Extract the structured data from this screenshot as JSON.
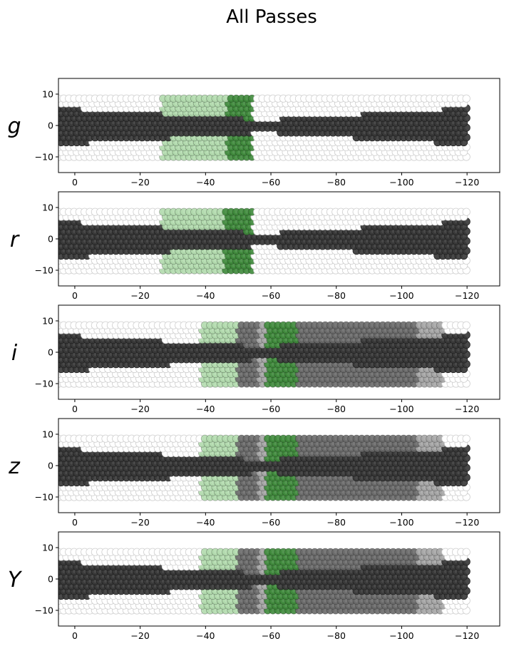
{
  "chart_data": {
    "title": "All Passes",
    "type": "scatter",
    "xlim": [
      5,
      -130
    ],
    "ylim": [
      -15,
      15
    ],
    "xticks": [
      0,
      -20,
      -40,
      -60,
      -80,
      -100,
      -120
    ],
    "yticks": [
      10,
      0,
      -10
    ],
    "xtick_labels": [
      "0",
      "−20",
      "−40",
      "−60",
      "−80",
      "−100",
      "−120"
    ],
    "ytick_labels": [
      "10",
      "0",
      "−10"
    ],
    "footprint": {
      "x_range": [
        -120,
        5
      ],
      "y_half_width": 10
    },
    "colors": {
      "empty": "#ffffff",
      "covered": "#3a3a3a",
      "medium": "#6a6a6a",
      "light": "#a6a6a6",
      "light_green": "#b2dcae",
      "dark_green": "#3e8a3b"
    },
    "panels": [
      {
        "band": "g",
        "core_half_width": [
          6,
          2,
          6
        ],
        "regions": [
          {
            "x": [
              -27,
              -47
            ],
            "y": [
              -10,
              10
            ],
            "color": "light_green"
          },
          {
            "x": [
              -47,
              -55
            ],
            "y": [
              -10,
              10
            ],
            "color": "dark_green"
          }
        ]
      },
      {
        "band": "r",
        "core_half_width": [
          6,
          2,
          6
        ],
        "regions": [
          {
            "x": [
              -27,
              -46
            ],
            "y": [
              -10,
              10
            ],
            "color": "light_green"
          },
          {
            "x": [
              -46,
              -55
            ],
            "y": [
              -10,
              10
            ],
            "color": "dark_green"
          }
        ]
      },
      {
        "band": "i",
        "core_half_width": [
          6,
          2,
          6
        ],
        "regions": [
          {
            "x": [
              -39,
              -50
            ],
            "y": [
              -10,
              10
            ],
            "color": "light_green"
          },
          {
            "x": [
              -50,
              -56
            ],
            "y": [
              -10,
              10
            ],
            "color": "medium"
          },
          {
            "x": [
              -56,
              -59
            ],
            "y": [
              -10,
              10
            ],
            "color": "light"
          },
          {
            "x": [
              -59,
              -68
            ],
            "y": [
              -10,
              10
            ],
            "color": "dark_green"
          },
          {
            "x": [
              -68,
              -105
            ],
            "y": [
              -10,
              10
            ],
            "color": "medium"
          },
          {
            "x": [
              -105,
              -113
            ],
            "y": [
              -10,
              10
            ],
            "color": "light"
          }
        ]
      },
      {
        "band": "z",
        "core_half_width": [
          6,
          2,
          6
        ],
        "regions": [
          {
            "x": [
              -39,
              -50
            ],
            "y": [
              -10,
              10
            ],
            "color": "light_green"
          },
          {
            "x": [
              -50,
              -56
            ],
            "y": [
              -10,
              10
            ],
            "color": "medium"
          },
          {
            "x": [
              -56,
              -59
            ],
            "y": [
              -10,
              10
            ],
            "color": "light"
          },
          {
            "x": [
              -59,
              -68
            ],
            "y": [
              -10,
              10
            ],
            "color": "dark_green"
          },
          {
            "x": [
              -68,
              -105
            ],
            "y": [
              -10,
              10
            ],
            "color": "medium"
          },
          {
            "x": [
              -105,
              -113
            ],
            "y": [
              -10,
              10
            ],
            "color": "light"
          }
        ]
      },
      {
        "band": "Y",
        "core_half_width": [
          6,
          2,
          6
        ],
        "regions": [
          {
            "x": [
              -39,
              -50
            ],
            "y": [
              -10,
              10
            ],
            "color": "light_green"
          },
          {
            "x": [
              -50,
              -56
            ],
            "y": [
              -10,
              10
            ],
            "color": "medium"
          },
          {
            "x": [
              -56,
              -59
            ],
            "y": [
              -10,
              10
            ],
            "color": "light"
          },
          {
            "x": [
              -59,
              -68
            ],
            "y": [
              -10,
              10
            ],
            "color": "dark_green"
          },
          {
            "x": [
              -68,
              -105
            ],
            "y": [
              -10,
              10
            ],
            "color": "medium"
          },
          {
            "x": [
              -105,
              -113
            ],
            "y": [
              -10,
              10
            ],
            "color": "light"
          }
        ]
      }
    ]
  }
}
